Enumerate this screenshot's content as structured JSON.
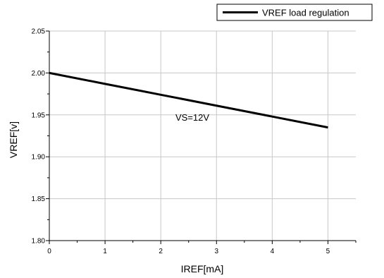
{
  "chart_data": {
    "type": "line",
    "title": "",
    "xlabel": "IREF[mA]",
    "ylabel": "VREF[v]",
    "xlim": [
      0,
      5.5
    ],
    "ylim": [
      1.8,
      2.05
    ],
    "x_ticks": [
      "0",
      "1",
      "2",
      "3",
      "4",
      "5"
    ],
    "y_ticks": [
      "1.80",
      "1.85",
      "1.90",
      "1.95",
      "2.00",
      "2.05"
    ],
    "grid": true,
    "legend_position": "top-right",
    "annotation": "VS=12V",
    "series": [
      {
        "name": "VREF load regulation",
        "color": "#000000",
        "x": [
          0,
          1,
          2,
          3,
          4,
          5
        ],
        "y": [
          2.0,
          1.987,
          1.974,
          1.961,
          1.948,
          1.935
        ]
      }
    ]
  }
}
